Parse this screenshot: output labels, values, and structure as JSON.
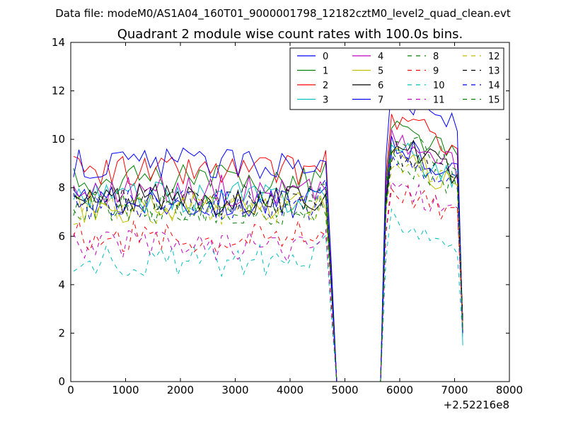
{
  "chart_data": {
    "type": "line",
    "suptitle": "Data file: modeM0/AS1A04_160T01_9000001798_12182cztM0_level2_quad_clean.evt",
    "title": "Quadrant 2 module wise count rates with 100.0s bins.",
    "xlabel": "",
    "ylabel": "",
    "xlim": [
      0,
      8000
    ],
    "ylim": [
      0,
      14
    ],
    "x_offset_label": "+2.52216e8",
    "x_ticks": [
      "0",
      "1000",
      "2000",
      "3000",
      "4000",
      "5000",
      "6000",
      "7000",
      "8000"
    ],
    "y_ticks": [
      "0",
      "2",
      "4",
      "6",
      "8",
      "10",
      "12",
      "14"
    ],
    "grid": false,
    "legend": {
      "placement": "top-right",
      "columns": 4
    },
    "bin_width": 100,
    "x": [
      50,
      150,
      250,
      350,
      450,
      550,
      650,
      750,
      850,
      950,
      1050,
      1150,
      1250,
      1350,
      1450,
      1550,
      1650,
      1750,
      1850,
      1950,
      2050,
      2150,
      2250,
      2350,
      2450,
      2550,
      2650,
      2750,
      2850,
      2950,
      3050,
      3150,
      3250,
      3350,
      3450,
      3550,
      3650,
      3750,
      3850,
      3950,
      4050,
      4150,
      4250,
      4350,
      4450,
      4550,
      4650,
      4750,
      4850,
      4950,
      5050,
      5150,
      5250,
      5350,
      5450,
      5550,
      5650,
      5750,
      5850,
      5950,
      6050,
      6150,
      6250,
      6350,
      6450,
      6550,
      6650,
      6750,
      6850,
      6950,
      7050,
      7150
    ],
    "active_ranges": [
      [
        50,
        4650
      ],
      [
        5750,
        7050
      ]
    ],
    "gaps": [
      [
        4850,
        5650
      ]
    ],
    "end_values_at_7150": [
      2.0,
      2.1,
      2.2,
      1.5,
      2.3,
      2.4,
      2.5,
      2.0,
      2.1,
      2.2,
      1.8,
      2.0,
      2.3,
      2.6,
      2.1,
      2.2
    ],
    "series": [
      {
        "name": "0",
        "color": "#0000ff",
        "dash": "solid",
        "mean_on": 7.4,
        "mean_on2": 8.9
      },
      {
        "name": "1",
        "color": "#008000",
        "dash": "solid",
        "mean_on": 8.3,
        "mean_on2": 9.6
      },
      {
        "name": "2",
        "color": "#ff0000",
        "dash": "solid",
        "mean_on": 8.7,
        "mean_on2": 10.0
      },
      {
        "name": "3",
        "color": "#00bfbf",
        "dash": "solid",
        "mean_on": 7.6,
        "mean_on2": 8.7
      },
      {
        "name": "4",
        "color": "#bf00bf",
        "dash": "solid",
        "mean_on": 7.9,
        "mean_on2": 9.1
      },
      {
        "name": "5",
        "color": "#bfbf00",
        "dash": "solid",
        "mean_on": 7.2,
        "mean_on2": 8.4
      },
      {
        "name": "6",
        "color": "#000000",
        "dash": "solid",
        "mean_on": 7.5,
        "mean_on2": 8.9
      },
      {
        "name": "7",
        "color": "#0000ff",
        "dash": "solid",
        "mean_on": 9.0,
        "mean_on2": 10.9
      },
      {
        "name": "8",
        "color": "#008000",
        "dash": "dashed",
        "mean_on": 7.0,
        "mean_on2": 9.3
      },
      {
        "name": "9",
        "color": "#ff0000",
        "dash": "dashed",
        "mean_on": 6.0,
        "mean_on2": 7.2
      },
      {
        "name": "10",
        "color": "#00bfbf",
        "dash": "dashed",
        "mean_on": 5.0,
        "mean_on2": 6.0
      },
      {
        "name": "11",
        "color": "#bf00bf",
        "dash": "dashed",
        "mean_on": 5.6,
        "mean_on2": 7.3
      },
      {
        "name": "12",
        "color": "#bfbf00",
        "dash": "dashed",
        "mean_on": 7.1,
        "mean_on2": 8.2
      },
      {
        "name": "13",
        "color": "#000000",
        "dash": "dashed",
        "mean_on": 7.5,
        "mean_on2": 8.6
      },
      {
        "name": "14",
        "color": "#0000ff",
        "dash": "dashed",
        "mean_on": 7.3,
        "mean_on2": 8.5
      },
      {
        "name": "15",
        "color": "#008000",
        "dash": "dashed",
        "mean_on": 7.2,
        "mean_on2": 8.4
      }
    ]
  }
}
